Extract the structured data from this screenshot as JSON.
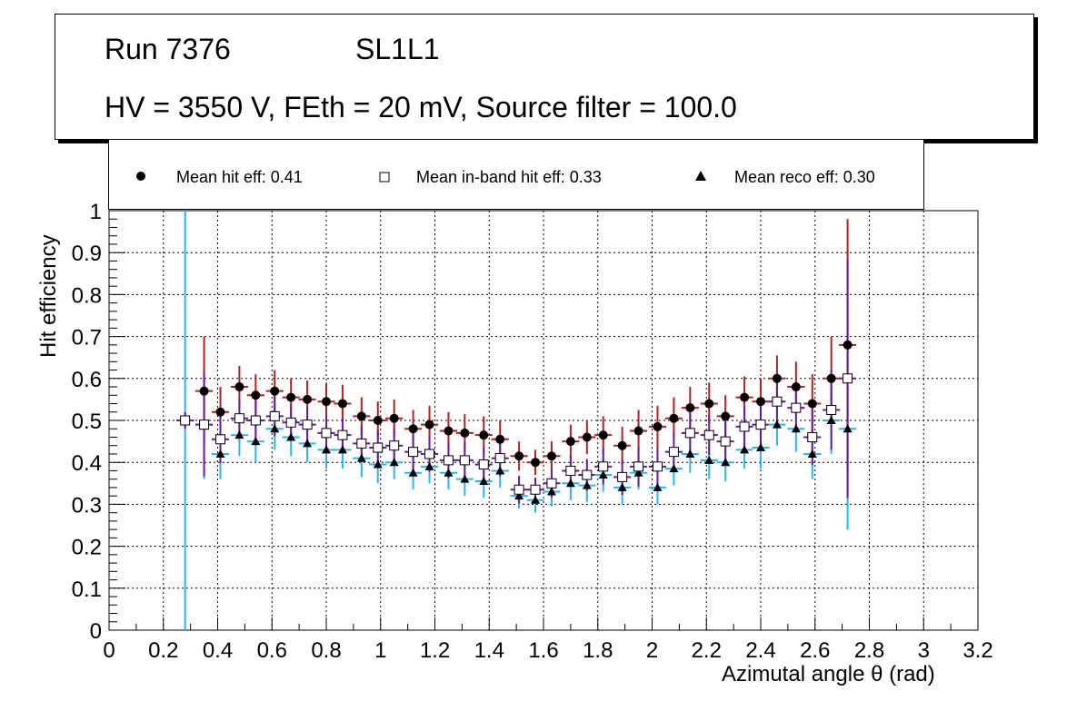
{
  "header": {
    "run": "Run 7376",
    "layer": "SL1L1",
    "conditions": "HV = 3550 V, FEth = 20 mV, Source filter = 100.0"
  },
  "chart_data": {
    "type": "scatter",
    "xlabel": "Azimutal angle θ (rad)",
    "ylabel": "Hit efficiency",
    "xlim": [
      0,
      3.2
    ],
    "ylim": [
      0,
      1
    ],
    "grid": true,
    "legend_position": "top",
    "xticks": [
      "0",
      "0.2",
      "0.4",
      "0.6",
      "0.8",
      "1",
      "1.2",
      "1.4",
      "1.6",
      "1.8",
      "2",
      "2.2",
      "2.4",
      "2.6",
      "2.8",
      "3",
      "3.2"
    ],
    "yticks": [
      "0",
      "0.1",
      "0.2",
      "0.3",
      "0.4",
      "0.5",
      "0.6",
      "0.7",
      "0.8",
      "0.9",
      "1"
    ],
    "x": [
      0.28,
      0.35,
      0.41,
      0.48,
      0.54,
      0.61,
      0.67,
      0.73,
      0.8,
      0.86,
      0.93,
      0.99,
      1.05,
      1.12,
      1.18,
      1.25,
      1.31,
      1.38,
      1.44,
      1.51,
      1.57,
      1.63,
      1.7,
      1.76,
      1.82,
      1.89,
      1.95,
      2.02,
      2.08,
      2.14,
      2.21,
      2.27,
      2.34,
      2.4,
      2.46,
      2.53,
      2.59,
      2.66,
      2.72
    ],
    "series": [
      {
        "name": "Mean hit  eff: 0.41",
        "marker": "circle",
        "bar_color": "#b22222",
        "values": [
          0.5,
          0.57,
          0.52,
          0.58,
          0.56,
          0.57,
          0.555,
          0.55,
          0.545,
          0.54,
          0.51,
          0.5,
          0.505,
          0.48,
          0.49,
          0.475,
          0.47,
          0.465,
          0.455,
          0.415,
          0.4,
          0.415,
          0.45,
          0.46,
          0.465,
          0.44,
          0.475,
          0.485,
          0.505,
          0.53,
          0.54,
          0.51,
          0.555,
          0.545,
          0.6,
          0.58,
          0.54,
          0.6,
          0.68
        ],
        "errors": [
          0.02,
          0.13,
          0.06,
          0.05,
          0.05,
          0.05,
          0.045,
          0.045,
          0.045,
          0.045,
          0.045,
          0.045,
          0.045,
          0.045,
          0.045,
          0.045,
          0.045,
          0.045,
          0.045,
          0.035,
          0.03,
          0.035,
          0.04,
          0.04,
          0.045,
          0.045,
          0.05,
          0.05,
          0.05,
          0.05,
          0.05,
          0.05,
          0.05,
          0.055,
          0.055,
          0.06,
          0.07,
          0.1,
          0.3
        ]
      },
      {
        "name": "Mean in-band hit eff: 0.33",
        "marker": "open-square",
        "bar_color": "#6a1b9a",
        "values": [
          0.5,
          0.49,
          0.455,
          0.505,
          0.5,
          0.51,
          0.495,
          0.49,
          0.47,
          0.465,
          0.445,
          0.435,
          0.44,
          0.425,
          0.42,
          0.405,
          0.405,
          0.395,
          0.41,
          0.335,
          0.335,
          0.35,
          0.38,
          0.37,
          0.39,
          0.365,
          0.39,
          0.39,
          0.425,
          0.47,
          0.465,
          0.45,
          0.485,
          0.49,
          0.545,
          0.53,
          0.46,
          0.525,
          0.6
        ]
      },
      {
        "name": "Mean reco eff: 0.30",
        "marker": "triangle",
        "bar_color": "#29b6f6",
        "values": [
          0.5,
          0.49,
          0.42,
          0.465,
          0.45,
          0.48,
          0.46,
          0.445,
          0.43,
          0.43,
          0.41,
          0.395,
          0.4,
          0.375,
          0.39,
          0.375,
          0.36,
          0.355,
          0.38,
          0.32,
          0.31,
          0.33,
          0.35,
          0.345,
          0.37,
          0.34,
          0.375,
          0.34,
          0.385,
          0.42,
          0.405,
          0.4,
          0.43,
          0.435,
          0.49,
          0.48,
          0.42,
          0.5,
          0.48
        ],
        "errors": [
          0.5,
          0.13,
          0.06,
          0.05,
          0.05,
          0.05,
          0.045,
          0.045,
          0.045,
          0.045,
          0.045,
          0.045,
          0.04,
          0.04,
          0.04,
          0.04,
          0.04,
          0.04,
          0.04,
          0.03,
          0.03,
          0.035,
          0.04,
          0.04,
          0.04,
          0.04,
          0.04,
          0.04,
          0.04,
          0.045,
          0.045,
          0.045,
          0.045,
          0.05,
          0.05,
          0.055,
          0.06,
          0.08,
          0.24
        ]
      }
    ]
  }
}
